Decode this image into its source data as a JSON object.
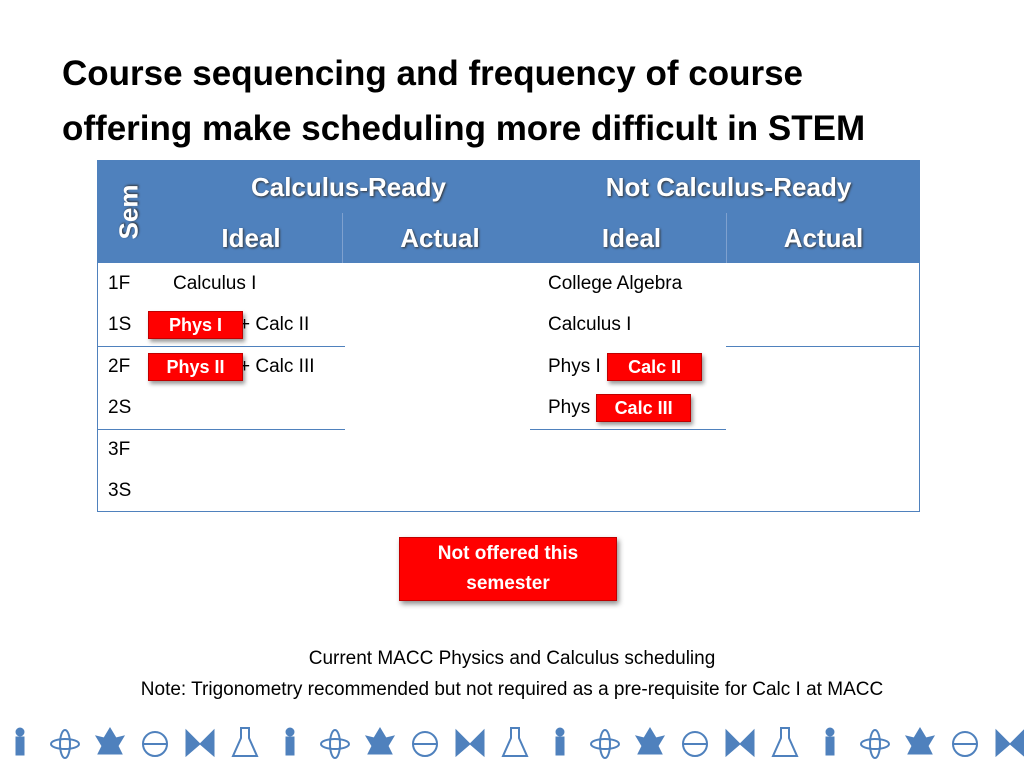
{
  "title": [
    "Course sequencing and frequency of course",
    "offering make scheduling more difficult in STEM"
  ],
  "table": {
    "header": {
      "sem": "Sem",
      "groups": [
        "Calculus-Ready",
        "Not Calculus-Ready"
      ],
      "sub": [
        "Ideal",
        "Actual",
        "Ideal",
        "Actual"
      ]
    },
    "rows": [
      {
        "sem": "1F",
        "cr_ideal": [
          {
            "text": "Calculus I"
          }
        ],
        "ncr_ideal": [
          {
            "text": "College Algebra"
          }
        ]
      },
      {
        "sem": "1S",
        "cr_ideal": [
          {
            "badge": "Phys I"
          },
          {
            "text": "+ Calc II"
          }
        ],
        "ncr_ideal": [
          {
            "text": "Calculus I"
          }
        ]
      },
      {
        "sem": "2F",
        "cr_ideal": [
          {
            "badge": "Phys II"
          },
          {
            "text": "+ Calc III"
          }
        ],
        "ncr_ideal": [
          {
            "text": "Phys I +"
          },
          {
            "badge": "Calc II"
          }
        ]
      },
      {
        "sem": "2S",
        "ncr_ideal": [
          {
            "text": "Phys II"
          },
          {
            "badge": "Calc III"
          }
        ]
      },
      {
        "sem": "3F"
      },
      {
        "sem": "3S"
      }
    ]
  },
  "legend": "Not offered this semester",
  "caption": [
    "Current MACC Physics and Calculus scheduling",
    "Note:  Trigonometry recommended but not required as a pre-requisite for Calc I at MACC"
  ]
}
